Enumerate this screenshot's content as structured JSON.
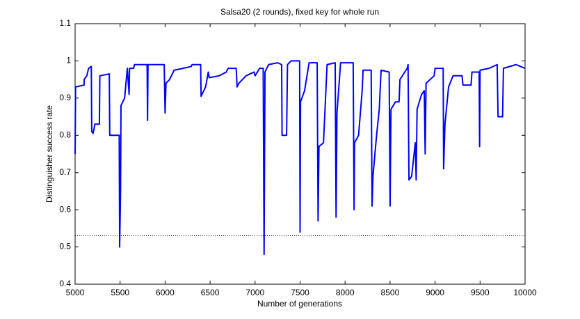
{
  "chart_data": {
    "type": "line",
    "title": "Salsa20 (2 rounds), fixed key for whole run",
    "x_label": "Number of generations",
    "y_label": "Distinguisher success rate",
    "xlim": [
      5000,
      10000
    ],
    "xticks": [
      5000,
      5500,
      6000,
      6500,
      7000,
      7500,
      8000,
      8500,
      9000,
      9500,
      10000
    ],
    "ylim": [
      0.4,
      1.1
    ],
    "yticks": [
      0.4,
      0.5,
      0.6,
      0.7,
      0.8,
      0.9,
      1,
      1.1
    ],
    "reference_line": 0.53,
    "series": [
      {
        "color": "#0000ff",
        "x": [
          5000,
          5005,
          5100,
          5100,
          5130,
          5150,
          5180,
          5185,
          5200,
          5220,
          5270,
          5275,
          5380,
          5385,
          5490,
          5495,
          5505,
          5510,
          5550,
          5580,
          5600,
          5605,
          5650,
          5660,
          5800,
          5805,
          5810,
          5990,
          6000,
          6010,
          6050,
          6100,
          6200,
          6290,
          6300,
          6395,
          6400,
          6450,
          6480,
          6490,
          6600,
          6680,
          6700,
          6790,
          6800,
          6820,
          6900,
          6990,
          7000,
          7050,
          7090,
          7100,
          7110,
          7150,
          7250,
          7295,
          7300,
          7350,
          7360,
          7400,
          7495,
          7500,
          7505,
          7550,
          7600,
          7690,
          7700,
          7710,
          7760,
          7800,
          7890,
          7900,
          7910,
          7950,
          8090,
          8100,
          8105,
          8150,
          8190,
          8200,
          8290,
          8300,
          8310,
          8350,
          8380,
          8400,
          8490,
          8500,
          8510,
          8560,
          8600,
          8610,
          8690,
          8700,
          8710,
          8740,
          8780,
          8790,
          8800,
          8850,
          8880,
          8890,
          8900,
          8990,
          9000,
          9090,
          9095,
          9110,
          9150,
          9200,
          9300,
          9310,
          9400,
          9410,
          9490,
          9495,
          9500,
          9600,
          9690,
          9700,
          9750,
          9760,
          9900,
          10000
        ],
        "values": [
          0.75,
          0.93,
          0.935,
          0.95,
          0.96,
          0.98,
          0.985,
          0.81,
          0.805,
          0.83,
          0.83,
          0.96,
          0.965,
          0.8,
          0.8,
          0.5,
          0.65,
          0.88,
          0.9,
          0.98,
          0.91,
          0.98,
          0.98,
          0.99,
          0.99,
          0.84,
          0.99,
          0.99,
          0.86,
          0.94,
          0.95,
          0.975,
          0.98,
          0.985,
          0.99,
          0.99,
          0.905,
          0.93,
          0.97,
          0.955,
          0.96,
          0.97,
          0.98,
          0.98,
          0.93,
          0.94,
          0.96,
          0.97,
          0.96,
          0.98,
          0.98,
          0.48,
          0.97,
          0.99,
          0.995,
          0.99,
          0.8,
          0.8,
          0.99,
          1.0,
          1.0,
          0.54,
          0.89,
          0.92,
          0.995,
          0.995,
          0.57,
          0.77,
          0.78,
          0.99,
          0.995,
          0.58,
          0.86,
          0.995,
          0.995,
          0.6,
          0.78,
          0.8,
          0.92,
          0.975,
          0.975,
          0.61,
          0.69,
          0.8,
          0.87,
          0.975,
          0.97,
          0.61,
          0.87,
          0.89,
          0.89,
          0.95,
          0.98,
          0.99,
          0.68,
          0.69,
          0.78,
          0.68,
          0.87,
          0.91,
          0.92,
          0.75,
          0.94,
          0.96,
          0.98,
          0.98,
          0.71,
          0.83,
          0.93,
          0.96,
          0.96,
          0.935,
          0.935,
          0.97,
          0.97,
          0.77,
          0.975,
          0.98,
          0.99,
          0.85,
          0.85,
          0.98,
          0.99,
          0.98
        ]
      }
    ]
  }
}
